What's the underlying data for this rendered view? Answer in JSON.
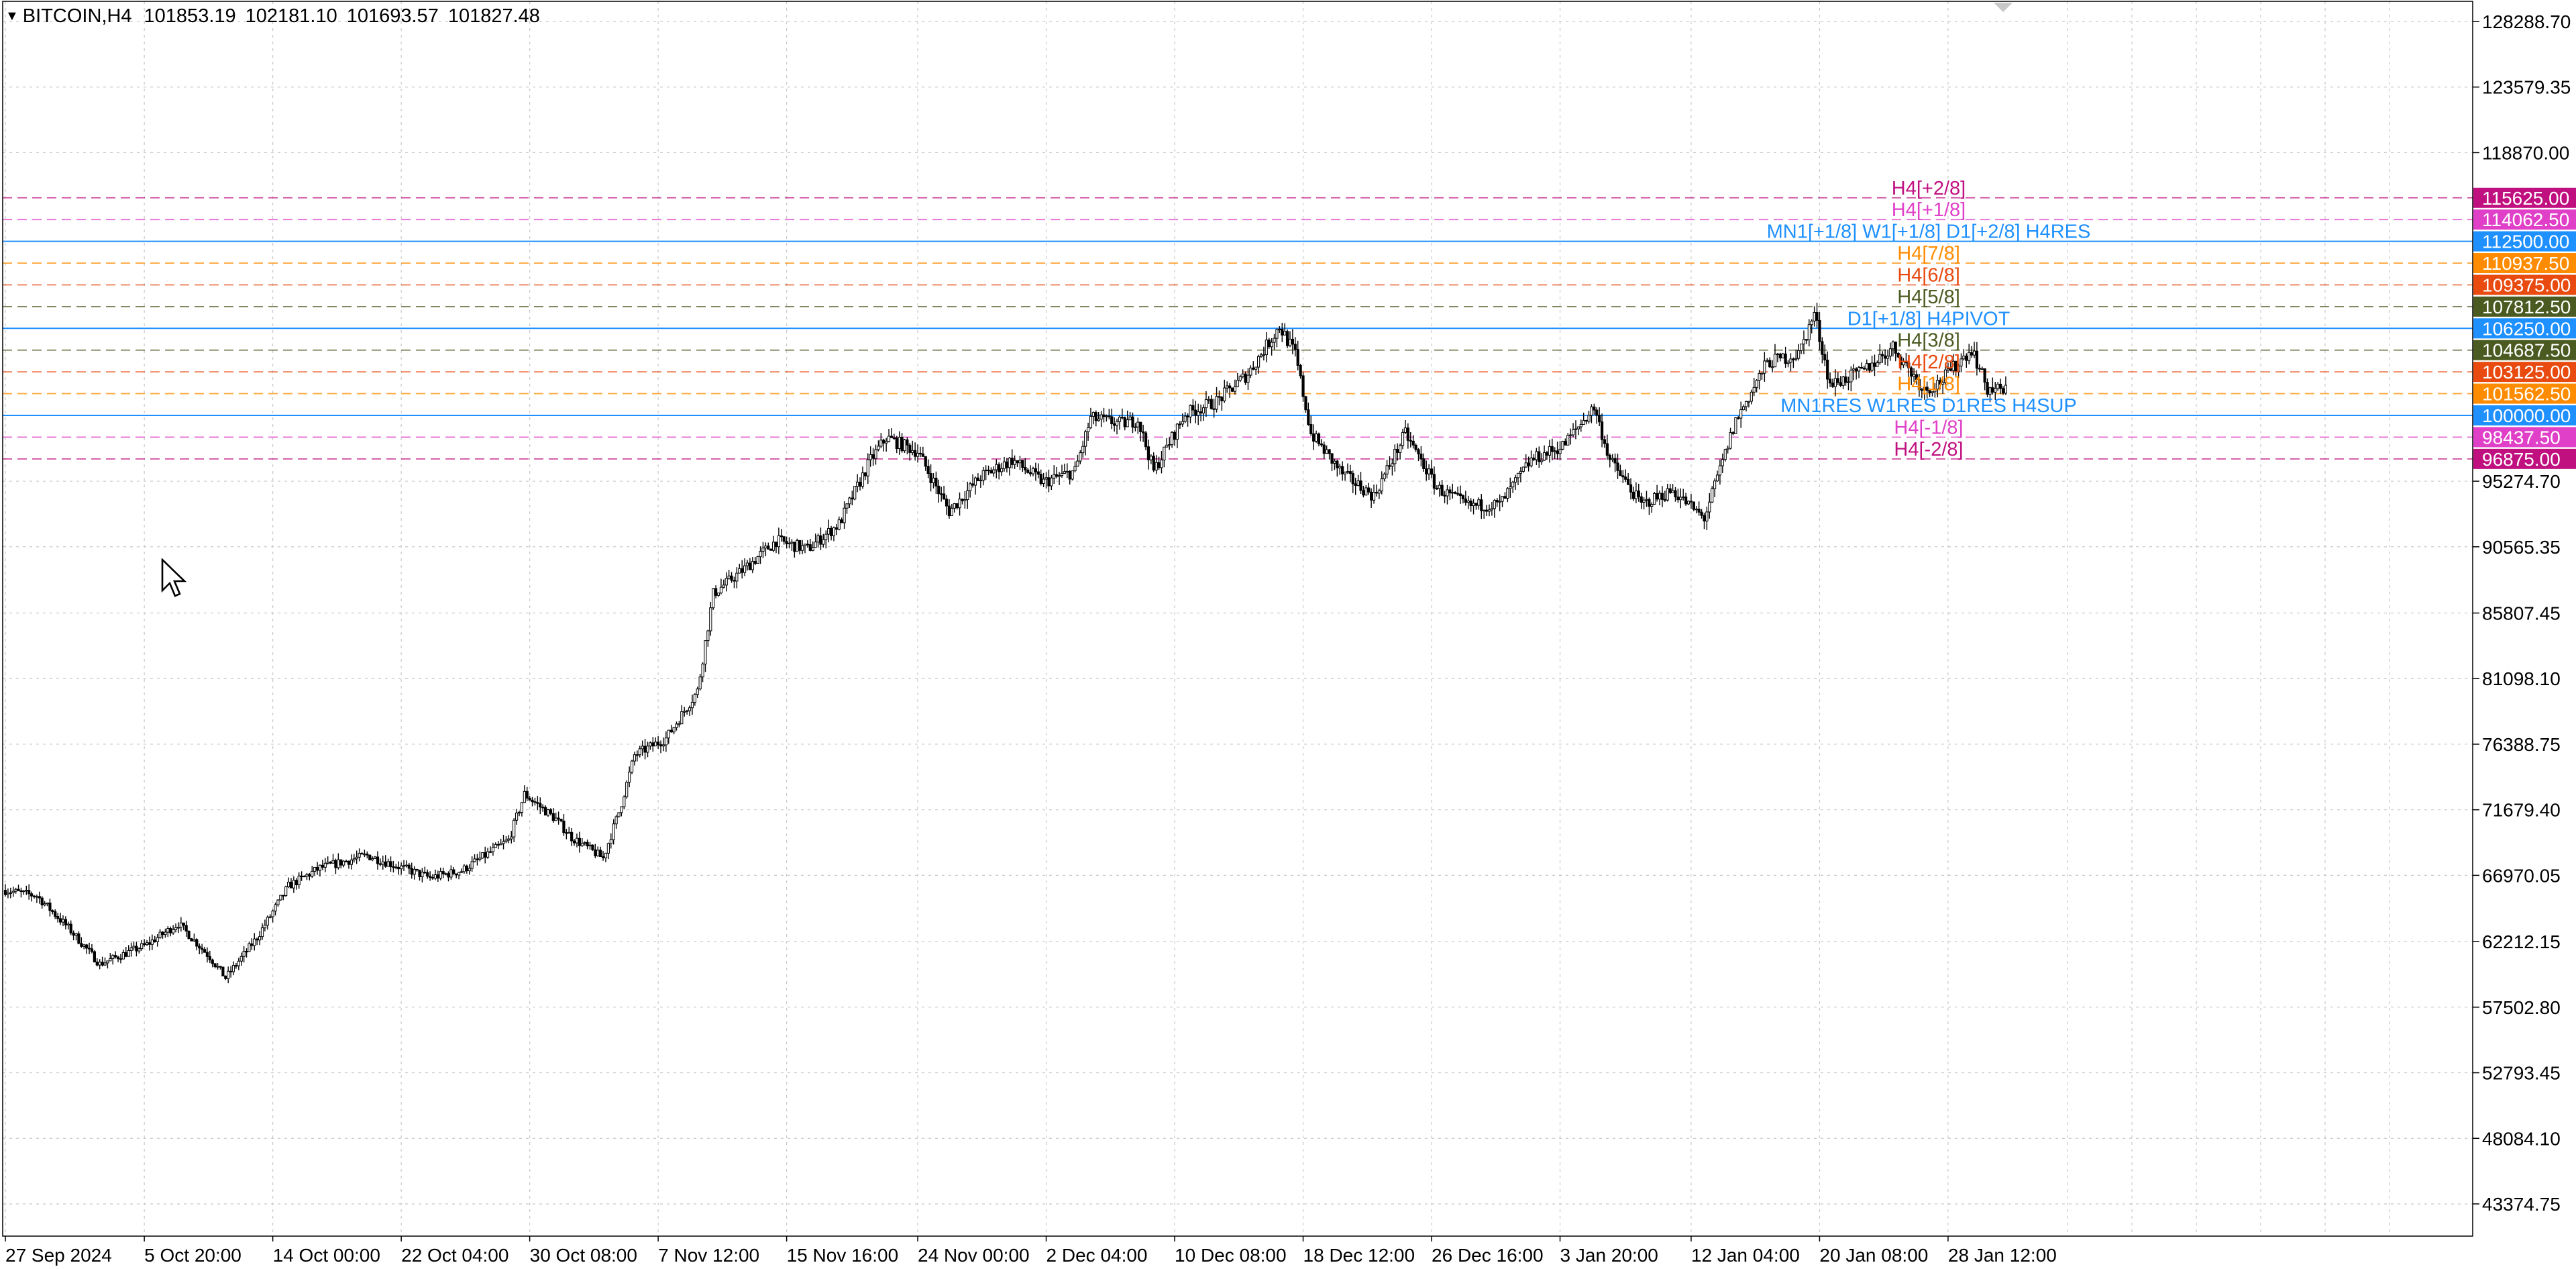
{
  "header": {
    "symbol": "BITCOIN,H4",
    "open": "101853.19",
    "high": "102181.10",
    "low": "101693.57",
    "close": "101827.48"
  },
  "colors": {
    "background": "#ffffff",
    "grid": "#c8c8c8",
    "candle": "#000000",
    "blue_level": "#1e90ff",
    "pink_level": "#e040c8",
    "magenta_level": "#c01080",
    "orange_level": "#ff8c00",
    "red_level": "#e84a10",
    "olive_level": "#4b5a20"
  },
  "chart_data": {
    "type": "candlestick",
    "ylim": [
      41000,
      130000
    ],
    "y_ticks": [
      "128288.70",
      "123579.35",
      "118870.00",
      "95274.70",
      "90565.35",
      "85807.45",
      "81098.10",
      "76388.75",
      "71679.40",
      "66970.05",
      "62212.15",
      "57502.80",
      "52793.45",
      "48084.10",
      "43374.75"
    ],
    "x_ticks": [
      "27 Sep 2024",
      "5 Oct 20:00",
      "14 Oct 00:00",
      "22 Oct 04:00",
      "30 Oct 08:00",
      "7 Nov 12:00",
      "15 Nov 16:00",
      "24 Nov 00:00",
      "2 Dec 04:00",
      "10 Dec 08:00",
      "18 Dec 12:00",
      "26 Dec 16:00",
      "3 Jan 20:00",
      "12 Jan 04:00",
      "20 Jan 08:00",
      "28 Jan 12:00"
    ],
    "x_range": [
      "27 Sep 2024",
      "4 Feb 2025"
    ],
    "grid": true,
    "price_path": [
      [
        "27 Sep 2024",
        65900
      ],
      [
        "29 Sep 2024",
        65500
      ],
      [
        "1 Oct 2024",
        63200
      ],
      [
        "3 Oct 2024",
        60600
      ],
      [
        "6 Oct 2024",
        62000
      ],
      [
        "8 Oct 2024",
        63500
      ],
      [
        "10 Oct 2024",
        61100
      ],
      [
        "11 Oct 2024",
        59600
      ],
      [
        "13 Oct 2024",
        62500
      ],
      [
        "15 Oct 2024",
        66200
      ],
      [
        "17 Oct 2024",
        67500
      ],
      [
        "20 Oct 2024",
        68400
      ],
      [
        "22 Oct 2024",
        67600
      ],
      [
        "24 Oct 2024",
        66800
      ],
      [
        "26 Oct 2024",
        67300
      ],
      [
        "29 Oct 2024",
        69500
      ],
      [
        "30 Oct 2024",
        72800
      ],
      [
        "1 Nov 2024",
        71000
      ],
      [
        "2 Nov 2024",
        69700
      ],
      [
        "4 Nov 2024",
        68200
      ],
      [
        "5 Nov 2024",
        71500
      ],
      [
        "6 Nov 2024",
        75600
      ],
      [
        "8 Nov 2024",
        76800
      ],
      [
        "10 Nov 2024",
        80200
      ],
      [
        "11 Nov 2024",
        87200
      ],
      [
        "13 Nov 2024",
        89000
      ],
      [
        "15 Nov 2024",
        91000
      ],
      [
        "17 Nov 2024",
        90400
      ],
      [
        "19 Nov 2024",
        92200
      ],
      [
        "21 Nov 2024",
        96800
      ],
      [
        "22 Nov 2024",
        98400
      ],
      [
        "24 Nov 2024",
        97400
      ],
      [
        "26 Nov 2024",
        93100
      ],
      [
        "28 Nov 2024",
        95600
      ],
      [
        "30 Nov 2024",
        96800
      ],
      [
        "2 Dec 2024",
        95200
      ],
      [
        "4 Dec 2024",
        96000
      ],
      [
        "5 Dec 2024",
        99800
      ],
      [
        "7 Dec 2024",
        99400
      ],
      [
        "8 Dec 2024",
        99700
      ],
      [
        "9 Dec 2024",
        96000
      ],
      [
        "11 Dec 2024",
        100100
      ],
      [
        "13 Dec 2024",
        101000
      ],
      [
        "15 Dec 2024",
        103000
      ],
      [
        "17 Dec 2024",
        106400
      ],
      [
        "18 Dec 2024",
        104400
      ],
      [
        "19 Dec 2024",
        98700
      ],
      [
        "21 Dec 2024",
        95800
      ],
      [
        "23 Dec 2024",
        94200
      ],
      [
        "25 Dec 2024",
        98700
      ],
      [
        "27 Dec 2024",
        94800
      ],
      [
        "29 Dec 2024",
        93500
      ],
      [
        "31 Dec 2024",
        93600
      ],
      [
        "2 Jan 2025",
        96800
      ],
      [
        "4 Jan 2025",
        97800
      ],
      [
        "6 Jan 2025",
        100600
      ],
      [
        "7 Jan 2025",
        96800
      ],
      [
        "9 Jan 2025",
        93600
      ],
      [
        "11 Jan 2025",
        94600
      ],
      [
        "13 Jan 2025",
        92600
      ],
      [
        "15 Jan 2025",
        99600
      ],
      [
        "17 Jan 2025",
        103800
      ],
      [
        "19 Jan 2025",
        104400
      ],
      [
        "20 Jan 2025",
        107300
      ],
      [
        "21 Jan 2025",
        102200
      ],
      [
        "23 Jan 2025",
        103100
      ],
      [
        "25 Jan 2025",
        104900
      ],
      [
        "27 Jan 2025",
        101800
      ],
      [
        "28 Jan 2025",
        102400
      ],
      [
        "30 Jan 2025",
        104800
      ],
      [
        "31 Jan 2025",
        101900
      ],
      [
        "1 Feb 2025",
        101800
      ]
    ],
    "levels": [
      {
        "price": "115625.00",
        "label": "H4[+2/8]",
        "color": "magenta_level",
        "style": "dashed"
      },
      {
        "price": "114062.50",
        "label": "H4[+1/8]",
        "color": "pink_level",
        "style": "dashed"
      },
      {
        "price": "112500.00",
        "label": "MN1[+1/8] W1[+1/8] D1[+2/8] H4RES",
        "color": "blue_level",
        "style": "solid"
      },
      {
        "price": "110937.50",
        "label": "H4[7/8]",
        "color": "orange_level",
        "style": "dashed"
      },
      {
        "price": "109375.00",
        "label": "H4[6/8]",
        "color": "red_level",
        "style": "dashed"
      },
      {
        "price": "107812.50",
        "label": "H4[5/8]",
        "color": "olive_level",
        "style": "dashed"
      },
      {
        "price": "106250.00",
        "label": "D1[+1/8] H4PIVOT",
        "color": "blue_level",
        "style": "solid"
      },
      {
        "price": "104687.50",
        "label": "H4[3/8]",
        "color": "olive_level",
        "style": "dashed"
      },
      {
        "price": "103125.00",
        "label": "H4[2/8]",
        "color": "red_level",
        "style": "dashed"
      },
      {
        "price": "101562.50",
        "label": "H4[1/8]",
        "color": "orange_level",
        "style": "dashed"
      },
      {
        "price": "100000.00",
        "label": "MN1RES W1RES D1RES H4SUP",
        "color": "blue_level",
        "style": "solid"
      },
      {
        "price": "98437.50",
        "label": "H4[-1/8]",
        "color": "pink_level",
        "style": "dashed"
      },
      {
        "price": "96875.00",
        "label": "H4[-2/8]",
        "color": "magenta_level",
        "style": "dashed"
      }
    ]
  }
}
